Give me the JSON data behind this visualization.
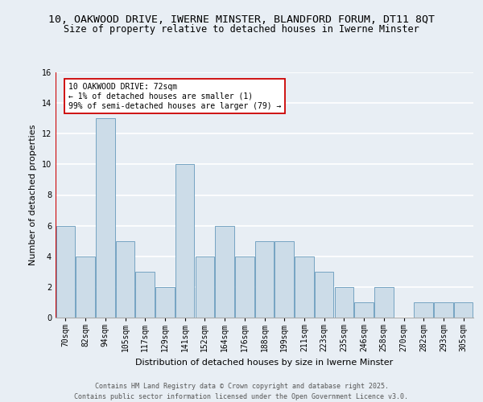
{
  "title_line1": "10, OAKWOOD DRIVE, IWERNE MINSTER, BLANDFORD FORUM, DT11 8QT",
  "title_line2": "Size of property relative to detached houses in Iwerne Minster",
  "xlabel": "Distribution of detached houses by size in Iwerne Minster",
  "ylabel": "Number of detached properties",
  "categories": [
    "70sqm",
    "82sqm",
    "94sqm",
    "105sqm",
    "117sqm",
    "129sqm",
    "141sqm",
    "152sqm",
    "164sqm",
    "176sqm",
    "188sqm",
    "199sqm",
    "211sqm",
    "223sqm",
    "235sqm",
    "246sqm",
    "258sqm",
    "270sqm",
    "282sqm",
    "293sqm",
    "305sqm"
  ],
  "values": [
    6,
    4,
    13,
    5,
    3,
    2,
    10,
    4,
    6,
    4,
    5,
    5,
    4,
    3,
    2,
    1,
    2,
    0,
    1,
    1,
    1
  ],
  "bar_color": "#ccdce8",
  "bar_edge_color": "#6699bb",
  "annotation_text": "10 OAKWOOD DRIVE: 72sqm\n← 1% of detached houses are smaller (1)\n99% of semi-detached houses are larger (79) →",
  "annotation_box_color": "#ffffff",
  "annotation_box_edge": "#cc0000",
  "ylim": [
    0,
    16
  ],
  "yticks": [
    0,
    2,
    4,
    6,
    8,
    10,
    12,
    14,
    16
  ],
  "footer_line1": "Contains HM Land Registry data © Crown copyright and database right 2025.",
  "footer_line2": "Contains public sector information licensed under the Open Government Licence v3.0.",
  "background_color": "#e8eef4",
  "plot_background": "#e8eef4",
  "grid_color": "#ffffff",
  "red_line_color": "#cc0000",
  "title_fontsize": 9.5,
  "subtitle_fontsize": 8.5,
  "axis_label_fontsize": 8,
  "tick_fontsize": 7,
  "annotation_fontsize": 7,
  "footer_fontsize": 6
}
